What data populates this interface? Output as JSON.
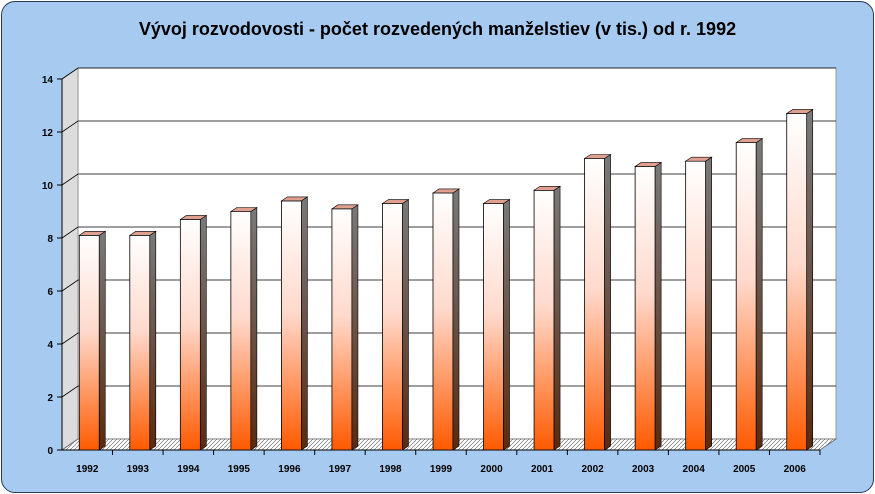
{
  "chart_data": {
    "type": "bar",
    "title": "Vývoj rozvodovosti - počet rozvedených manželstiev (v tis.) od r. 1992",
    "xlabel": "",
    "ylabel": "",
    "categories": [
      "1992",
      "1993",
      "1994",
      "1995",
      "1996",
      "1997",
      "1998",
      "1999",
      "2000",
      "2001",
      "2002",
      "2003",
      "2004",
      "2005",
      "2006"
    ],
    "values": [
      8.1,
      8.1,
      8.7,
      9.0,
      9.4,
      9.1,
      9.3,
      9.7,
      9.3,
      9.8,
      11.0,
      10.7,
      10.9,
      11.6,
      12.7
    ],
    "ylim": [
      0,
      14
    ],
    "yticks": [
      "0",
      "2",
      "4",
      "6",
      "8",
      "10",
      "12",
      "14"
    ],
    "grid": true,
    "colors": {
      "bar_top": "#ffffff",
      "bar_bottom": "#ff5a00",
      "frame_bg": "#a6caf0",
      "plot_bg": "#ffffff"
    }
  }
}
